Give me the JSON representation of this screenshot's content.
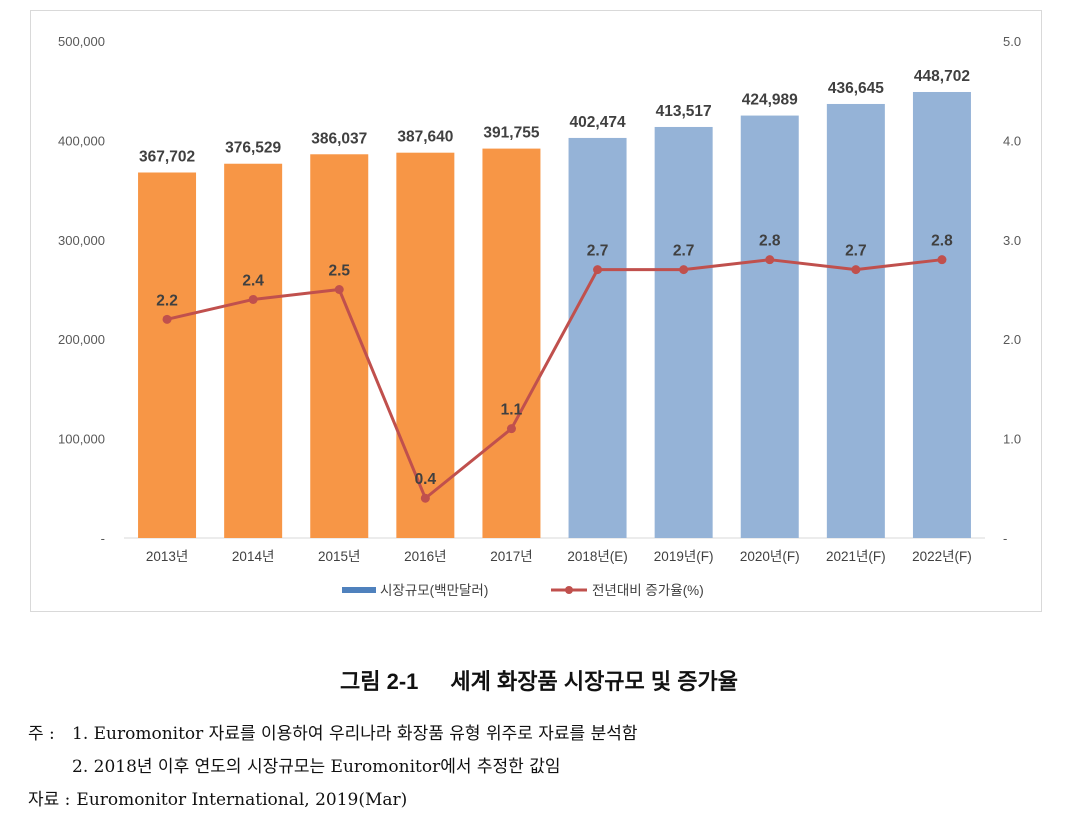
{
  "chart_data": {
    "type": "bar",
    "categories": [
      "2013년",
      "2014년",
      "2015년",
      "2016년",
      "2017년",
      "2018년(E)",
      "2019년(F)",
      "2020년(F)",
      "2021년(F)",
      "2022년(F)"
    ],
    "series": [
      {
        "name": "시장규모(백만달러)",
        "type": "bar",
        "axis": "left",
        "values": [
          367702,
          376529,
          386037,
          387640,
          391755,
          402474,
          413517,
          424989,
          436645,
          448702
        ]
      },
      {
        "name": "전년대비 증가율(%)",
        "type": "line",
        "axis": "right",
        "values": [
          2.2,
          2.4,
          2.5,
          0.4,
          1.1,
          2.7,
          2.7,
          2.8,
          2.7,
          2.8
        ]
      }
    ],
    "y_left": {
      "range": [
        0,
        500000
      ],
      "ticks": [
        0,
        100000,
        200000,
        300000,
        400000,
        500000
      ],
      "tick_labels": [
        "-",
        "100,000",
        "200,000",
        "300,000",
        "400,000",
        "500,000"
      ]
    },
    "y_right": {
      "range": [
        0,
        5.0
      ],
      "ticks": [
        0,
        1,
        2,
        3,
        4,
        5
      ],
      "tick_labels": [
        "-",
        "1.0",
        "2.0",
        "3.0",
        "4.0",
        "5.0"
      ]
    },
    "bar_colors": [
      "#F79646",
      "#F79646",
      "#F79646",
      "#F79646",
      "#F79646",
      "#95B3D7",
      "#95B3D7",
      "#95B3D7",
      "#95B3D7",
      "#95B3D7"
    ],
    "line_color": "#C0504D",
    "legend": {
      "position": "bottom",
      "colors": [
        "#4F81BD",
        "#C0504D"
      ]
    },
    "grid": false
  },
  "figure": {
    "number": "그림 2-1",
    "title": "세계 화장품 시장규모 및 증가율"
  },
  "notes": {
    "label": "주 :",
    "items": [
      "1. Euromonitor 자료를 이용하여 우리나라 화장품 유형 위주로 자료를 분석함",
      "2. 2018년 이후 연도의 시장규모는 Euromonitor에서 추정한 값임"
    ]
  },
  "source": {
    "label": "자료 :",
    "text": "Euromonitor International, 2019(Mar)"
  }
}
